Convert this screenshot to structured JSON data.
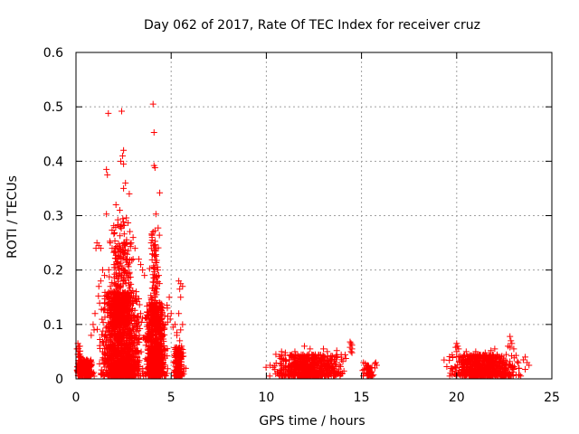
{
  "chart_data": {
    "type": "scatter",
    "title": "Day 062 of 2017, Rate Of TEC Index for receiver cruz",
    "xlabel": "GPS time / hours",
    "ylabel": "ROTI / TECUs",
    "xlim": [
      0,
      25
    ],
    "ylim": [
      0,
      0.6
    ],
    "x_ticks": [
      0,
      5,
      10,
      15,
      20,
      25
    ],
    "y_ticks": [
      0,
      0.1,
      0.2,
      0.3,
      0.4,
      0.5,
      0.6
    ],
    "x_tick_labels": [
      "0",
      "5",
      "10",
      "15",
      "20",
      "25"
    ],
    "y_tick_labels": [
      "0",
      "0.1",
      "0.2",
      "0.3",
      "0.4",
      "0.5",
      "0.6"
    ],
    "grid": true,
    "marker": "+",
    "marker_color": "#ff0000",
    "series": [
      {
        "name": "ROTI",
        "clusters": [
          {
            "x_range": [
              0.0,
              1.0
            ],
            "y_range": [
              0.005,
              0.035
            ],
            "n": 320,
            "x_peak": 0.5
          },
          {
            "x_range": [
              0.0,
              0.3
            ],
            "y_range": [
              0.01,
              0.06
            ],
            "n": 40,
            "x_peak": 0.15
          },
          {
            "x_range": [
              1.0,
              3.8
            ],
            "y_range": [
              0.005,
              0.16
            ],
            "n": 1200,
            "x_peak": 2.3
          },
          {
            "x_range": [
              1.5,
              3.2
            ],
            "y_range": [
              0.1,
              0.3
            ],
            "n": 320,
            "x_peak": 2.4
          },
          {
            "x_range": [
              3.5,
              5.0
            ],
            "y_range": [
              0.005,
              0.14
            ],
            "n": 700,
            "x_peak": 4.1
          },
          {
            "x_range": [
              3.8,
              4.5
            ],
            "y_range": [
              0.1,
              0.28
            ],
            "n": 120,
            "x_peak": 4.1
          },
          {
            "x_range": [
              5.0,
              5.8
            ],
            "y_range": [
              0.005,
              0.06
            ],
            "n": 150,
            "x_peak": 5.4
          },
          {
            "x_range": [
              9.9,
              14.6
            ],
            "y_range": [
              0.005,
              0.045
            ],
            "n": 650,
            "x_peak": 12.2
          },
          {
            "x_range": [
              15.0,
              15.8
            ],
            "y_range": [
              0.005,
              0.025
            ],
            "n": 50,
            "x_peak": 15.4
          },
          {
            "x_range": [
              19.1,
              23.9
            ],
            "y_range": [
              0.005,
              0.045
            ],
            "n": 650,
            "x_peak": 21.5
          }
        ],
        "points": [
          [
            1.7,
            0.488
          ],
          [
            2.4,
            0.492
          ],
          [
            4.05,
            0.505
          ],
          [
            4.1,
            0.453
          ],
          [
            2.5,
            0.42
          ],
          [
            2.45,
            0.41
          ],
          [
            2.35,
            0.4
          ],
          [
            2.5,
            0.395
          ],
          [
            4.1,
            0.392
          ],
          [
            4.15,
            0.388
          ],
          [
            1.6,
            0.385
          ],
          [
            1.65,
            0.375
          ],
          [
            2.6,
            0.36
          ],
          [
            2.5,
            0.35
          ],
          [
            4.4,
            0.342
          ],
          [
            2.8,
            0.34
          ],
          [
            1.6,
            0.303
          ],
          [
            4.2,
            0.303
          ],
          [
            2.1,
            0.32
          ],
          [
            2.3,
            0.31
          ],
          [
            1.1,
            0.25
          ],
          [
            1.2,
            0.245
          ],
          [
            1.05,
            0.24
          ],
          [
            1.3,
            0.24
          ],
          [
            1.8,
            0.25
          ],
          [
            1.9,
            0.24
          ],
          [
            4.3,
            0.2
          ],
          [
            4.35,
            0.19
          ],
          [
            0.1,
            0.065
          ],
          [
            0.05,
            0.055
          ],
          [
            0.2,
            0.06
          ],
          [
            0.1,
            0.045
          ],
          [
            5.4,
            0.18
          ],
          [
            5.5,
            0.175
          ],
          [
            5.6,
            0.17
          ],
          [
            5.45,
            0.165
          ],
          [
            5.5,
            0.15
          ],
          [
            5.4,
            0.12
          ],
          [
            5.6,
            0.1
          ],
          [
            5.5,
            0.09
          ],
          [
            5.3,
            0.08
          ],
          [
            5.45,
            0.07
          ],
          [
            5.55,
            0.06
          ],
          [
            5.5,
            0.05
          ],
          [
            5.2,
            0.1
          ],
          [
            5.1,
            0.095
          ],
          [
            5.3,
            0.085
          ],
          [
            5.0,
            0.12
          ],
          [
            4.9,
            0.15
          ],
          [
            4.8,
            0.13
          ],
          [
            4.95,
            0.11
          ],
          [
            4.7,
            0.1
          ],
          [
            12.0,
            0.06
          ],
          [
            12.3,
            0.055
          ],
          [
            11.5,
            0.05
          ],
          [
            13.0,
            0.055
          ],
          [
            13.2,
            0.05
          ],
          [
            14.4,
            0.068
          ],
          [
            14.45,
            0.065
          ],
          [
            14.5,
            0.062
          ],
          [
            14.4,
            0.058
          ],
          [
            14.5,
            0.055
          ],
          [
            14.45,
            0.05
          ],
          [
            14.5,
            0.048
          ],
          [
            10.8,
            0.05
          ],
          [
            11.0,
            0.048
          ],
          [
            10.5,
            0.045
          ],
          [
            13.7,
            0.052
          ],
          [
            15.7,
            0.028
          ],
          [
            15.8,
            0.025
          ],
          [
            15.75,
            0.03
          ],
          [
            15.7,
            0.02
          ],
          [
            15.1,
            0.03
          ],
          [
            15.2,
            0.028
          ],
          [
            20.0,
            0.065
          ],
          [
            20.05,
            0.06
          ],
          [
            19.95,
            0.058
          ],
          [
            20.1,
            0.055
          ],
          [
            20.0,
            0.05
          ],
          [
            21.0,
            0.05
          ],
          [
            21.5,
            0.048
          ],
          [
            22.0,
            0.055
          ],
          [
            22.8,
            0.078
          ],
          [
            22.85,
            0.07
          ],
          [
            22.9,
            0.065
          ],
          [
            22.7,
            0.06
          ],
          [
            22.8,
            0.058
          ],
          [
            23.0,
            0.055
          ],
          [
            21.8,
            0.052
          ],
          [
            20.5,
            0.05
          ],
          [
            23.5,
            0.035
          ],
          [
            23.7,
            0.03
          ],
          [
            23.8,
            0.025
          ],
          [
            23.6,
            0.04
          ],
          [
            2.2,
            0.22
          ],
          [
            2.0,
            0.21
          ],
          [
            2.6,
            0.23
          ],
          [
            2.7,
            0.22
          ],
          [
            3.0,
            0.26
          ],
          [
            2.9,
            0.25
          ],
          [
            3.1,
            0.24
          ],
          [
            3.0,
            0.22
          ],
          [
            1.4,
            0.2
          ],
          [
            1.5,
            0.19
          ],
          [
            1.3,
            0.18
          ],
          [
            1.2,
            0.17
          ],
          [
            3.4,
            0.21
          ],
          [
            3.5,
            0.2
          ],
          [
            3.6,
            0.19
          ],
          [
            3.3,
            0.22
          ],
          [
            4.0,
            0.26
          ],
          [
            4.05,
            0.27
          ],
          [
            3.95,
            0.25
          ],
          [
            4.2,
            0.24
          ],
          [
            0.9,
            0.1
          ],
          [
            0.95,
            0.09
          ],
          [
            1.0,
            0.12
          ],
          [
            0.8,
            0.08
          ]
        ]
      }
    ]
  }
}
